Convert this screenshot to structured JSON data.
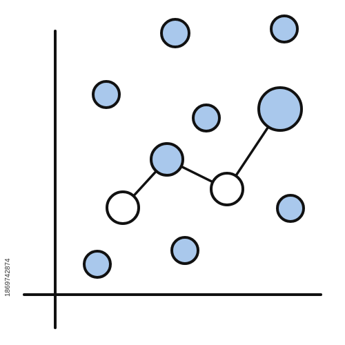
{
  "watermark": "1869742874"
}
